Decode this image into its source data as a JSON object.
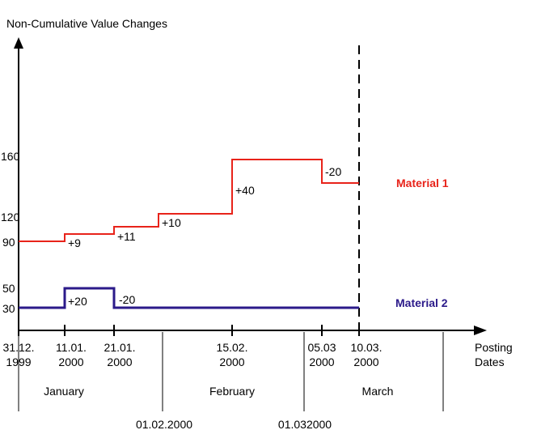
{
  "chart_data": {
    "type": "line",
    "step": true,
    "title": "Non-Cumulative Value Changes",
    "xlabel_lines": [
      "Posting",
      "Dates"
    ],
    "y_ticks": [
      "160",
      "120",
      "90",
      "50",
      "30"
    ],
    "x_ticks": [
      {
        "date": "1999-12-31",
        "lines": [
          "31.12.",
          "1999"
        ]
      },
      {
        "date": "2000-01-11",
        "lines": [
          "11.01.",
          "2000"
        ]
      },
      {
        "date": "2000-01-21",
        "lines": [
          "21.01.",
          "2000"
        ]
      },
      {
        "date": "2000-02-15",
        "lines": [
          "15.02.",
          "2000"
        ]
      },
      {
        "date": "2000-03-05",
        "lines": [
          "05.03",
          "2000"
        ]
      },
      {
        "date": "2000-03-10",
        "lines": [
          "10.03.",
          "2000"
        ]
      }
    ],
    "months": [
      "January",
      "February",
      "March"
    ],
    "month_boundaries": [
      "01.02.2000",
      "01.032000"
    ],
    "cutoff_date": "2000-03-10",
    "series": [
      {
        "name": "Material 1",
        "color": "#e8231a",
        "points": [
          {
            "date": "1999-12-31",
            "value": 90
          },
          {
            "date": "2000-01-11",
            "value": 99
          },
          {
            "date": "2000-01-21",
            "value": 110
          },
          {
            "date": "2000-02-01",
            "value": 120
          },
          {
            "date": "2000-02-15",
            "value": 160
          },
          {
            "date": "2000-03-05",
            "value": 140
          },
          {
            "date": "2000-03-10",
            "value": 140
          }
        ],
        "changes": [
          "+9",
          "+11",
          "+10",
          "+40",
          "-20"
        ]
      },
      {
        "name": "Material 2",
        "color": "#2b1a8a",
        "points": [
          {
            "date": "1999-12-31",
            "value": 30
          },
          {
            "date": "2000-01-11",
            "value": 50
          },
          {
            "date": "2000-01-21",
            "value": 30
          },
          {
            "date": "2000-03-10",
            "value": 30
          }
        ],
        "changes": [
          "+20",
          "-20"
        ]
      }
    ]
  }
}
